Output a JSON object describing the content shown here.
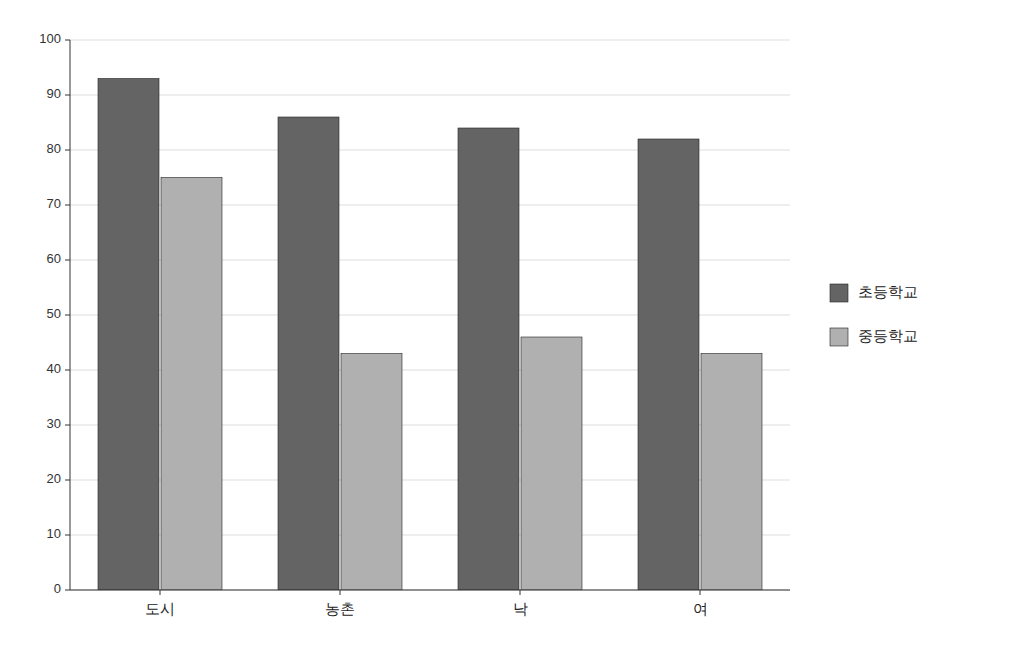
{
  "chart_data": {
    "type": "bar",
    "categories": [
      "도시",
      "농촌",
      "낙",
      "여"
    ],
    "series": [
      {
        "name": "초등학교",
        "color": "#646464",
        "values": [
          93,
          86,
          84,
          82
        ]
      },
      {
        "name": "중등학교",
        "color": "#b0b0b0",
        "values": [
          75,
          43,
          46,
          43
        ]
      }
    ],
    "ylim": [
      0,
      100
    ],
    "yticks": [
      0,
      10,
      20,
      30,
      40,
      50,
      60,
      70,
      80,
      90,
      100
    ],
    "grid": true,
    "legend": "right"
  }
}
